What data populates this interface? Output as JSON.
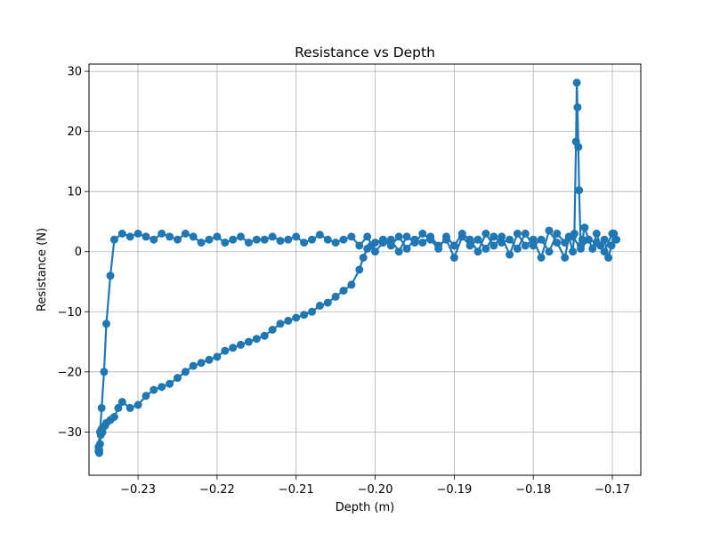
{
  "chart_data": {
    "type": "line",
    "title": "Resistance vs Depth",
    "xlabel": "Depth (m)",
    "ylabel": "Resistance (N)",
    "xlim": [
      -0.2362,
      -0.1664
    ],
    "ylim": [
      -37.2,
      31.2
    ],
    "x_ticks": [
      -0.23,
      -0.22,
      -0.21,
      -0.2,
      -0.19,
      -0.18,
      -0.17
    ],
    "x_tick_labels": [
      "−0.23",
      "−0.22",
      "−0.21",
      "−0.20",
      "−0.19",
      "−0.18",
      "−0.17"
    ],
    "y_ticks": [
      -30,
      -20,
      -10,
      0,
      10,
      20,
      30
    ],
    "y_tick_labels": [
      "−30",
      "−20",
      "−10",
      "0",
      "10",
      "20",
      "30"
    ],
    "grid": true,
    "legend": "none",
    "series": [
      {
        "color": "#1f77b4",
        "marker": "circle",
        "x": [
          -0.1695,
          -0.1698,
          -0.1701,
          -0.1705,
          -0.171,
          -0.1715,
          -0.172,
          -0.1725,
          -0.173,
          -0.1735,
          -0.1738,
          -0.174,
          -0.1742,
          -0.1743,
          -0.1744,
          -0.1745,
          -0.1746,
          -0.1748,
          -0.175,
          -0.1755,
          -0.176,
          -0.177,
          -0.178,
          -0.179,
          -0.18,
          -0.181,
          -0.182,
          -0.183,
          -0.184,
          -0.185,
          -0.186,
          -0.187,
          -0.188,
          -0.189,
          -0.19,
          -0.191,
          -0.192,
          -0.193,
          -0.194,
          -0.195,
          -0.196,
          -0.197,
          -0.198,
          -0.199,
          -0.2,
          -0.201,
          -0.202,
          -0.203,
          -0.204,
          -0.205,
          -0.206,
          -0.207,
          -0.208,
          -0.209,
          -0.21,
          -0.211,
          -0.212,
          -0.213,
          -0.214,
          -0.215,
          -0.216,
          -0.217,
          -0.218,
          -0.219,
          -0.22,
          -0.221,
          -0.222,
          -0.223,
          -0.224,
          -0.225,
          -0.226,
          -0.227,
          -0.228,
          -0.229,
          -0.23,
          -0.231,
          -0.232,
          -0.233,
          -0.2335,
          -0.234,
          -0.2343,
          -0.2346,
          -0.2348,
          -0.235,
          -0.235,
          -0.2349,
          -0.2349,
          -0.2348,
          -0.2347,
          -0.2346,
          -0.2345,
          -0.2342,
          -0.234,
          -0.2335,
          -0.233,
          -0.2325,
          -0.232,
          -0.231,
          -0.23,
          -0.229,
          -0.228,
          -0.227,
          -0.226,
          -0.225,
          -0.224,
          -0.223,
          -0.222,
          -0.221,
          -0.22,
          -0.219,
          -0.218,
          -0.217,
          -0.216,
          -0.215,
          -0.214,
          -0.213,
          -0.212,
          -0.211,
          -0.21,
          -0.209,
          -0.208,
          -0.207,
          -0.206,
          -0.205,
          -0.204,
          -0.203,
          -0.202,
          -0.2015,
          -0.201,
          -0.2005,
          -0.2,
          -0.199,
          -0.198,
          -0.197,
          -0.196,
          -0.195,
          -0.194,
          -0.193,
          -0.192,
          -0.191,
          -0.19,
          -0.189,
          -0.188,
          -0.187,
          -0.186,
          -0.185,
          -0.184,
          -0.183,
          -0.182,
          -0.181,
          -0.18,
          -0.179,
          -0.178,
          -0.177,
          -0.176,
          -0.175,
          -0.174,
          -0.173,
          -0.172,
          -0.171,
          -0.17,
          -0.1695
        ],
        "y": [
          2.0,
          3.0,
          1.0,
          -1.0,
          2.0,
          1.0,
          3.0,
          0.5,
          2.0,
          4.0,
          2.0,
          1.0,
          10.2,
          17.4,
          24.0,
          28.1,
          18.3,
          3.0,
          0.0,
          2.5,
          -1.0,
          1.5,
          3.5,
          -1.0,
          2.0,
          1.0,
          3.0,
          -0.5,
          2.5,
          1.0,
          3.0,
          0.0,
          2.0,
          3.0,
          1.0,
          2.5,
          0.5,
          2.0,
          3.0,
          1.5,
          2.5,
          0.0,
          2.0,
          1.5,
          0.0,
          2.5,
          1.0,
          2.5,
          2.0,
          1.5,
          2.0,
          2.8,
          2.0,
          1.5,
          2.5,
          2.0,
          1.8,
          2.5,
          2.0,
          2.0,
          1.5,
          2.5,
          2.0,
          1.5,
          2.5,
          2.0,
          1.5,
          2.5,
          3.0,
          2.0,
          2.5,
          3.0,
          2.0,
          2.5,
          3.0,
          2.5,
          3.0,
          2.0,
          -4.0,
          -12.0,
          -20.0,
          -26.0,
          -30.0,
          -32.5,
          -33.2,
          -33.5,
          -33.0,
          -32.0,
          -30.5,
          -29.5,
          -30.0,
          -29.0,
          -28.5,
          -28.0,
          -27.5,
          -26.0,
          -25.0,
          -26.0,
          -25.5,
          -24.0,
          -23.0,
          -22.5,
          -22.0,
          -21.0,
          -20.0,
          -19.0,
          -18.5,
          -18.0,
          -17.5,
          -16.5,
          -16.0,
          -15.5,
          -15.0,
          -14.5,
          -14.0,
          -13.0,
          -12.0,
          -11.5,
          -11.0,
          -10.5,
          -10.0,
          -9.0,
          -8.5,
          -7.5,
          -6.5,
          -5.5,
          -3.0,
          -1.0,
          0.5,
          1.0,
          1.5,
          2.0,
          1.0,
          2.5,
          0.5,
          2.0,
          1.5,
          2.5,
          1.0,
          2.0,
          -1.0,
          2.5,
          1.0,
          2.0,
          0.5,
          2.5,
          1.5,
          2.0,
          0.5,
          3.0,
          1.0,
          2.0,
          0.0,
          3.0,
          1.5,
          2.5,
          0.5,
          2.0,
          1.5,
          0.0,
          3.0,
          2.0
        ]
      }
    ]
  }
}
